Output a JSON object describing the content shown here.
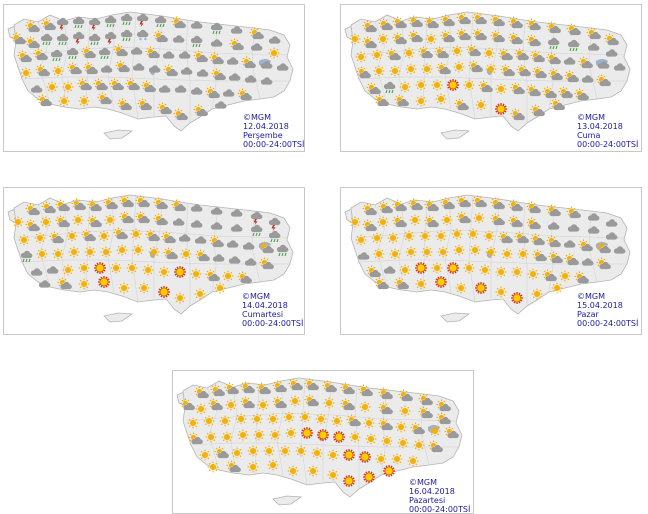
{
  "maps": [
    {
      "credit": "©MGM",
      "date": "12.04.2018",
      "day": "Perşembe",
      "hours": "00:00-24:00TSİ",
      "conditions": [
        "partly-cloudy",
        "sunny",
        "rain-showers",
        "thunderstorm",
        "cloudy",
        "snow"
      ]
    },
    {
      "credit": "©MGM",
      "date": "13.04.2018",
      "day": "Cuma",
      "hours": "00:00-24:00TSİ",
      "conditions": [
        "partly-cloudy",
        "sunny",
        "rain-showers",
        "cloudy",
        "hot"
      ]
    },
    {
      "credit": "©MGM",
      "date": "14.04.2018",
      "day": "Cumartesi",
      "hours": "00:00-24:00TSİ",
      "conditions": [
        "partly-cloudy",
        "sunny",
        "rain-showers",
        "thunderstorm",
        "cloudy",
        "hot"
      ]
    },
    {
      "credit": "©MGM",
      "date": "15.04.2018",
      "day": "Pazar",
      "hours": "00:00-24:00TSİ",
      "conditions": [
        "partly-cloudy",
        "sunny",
        "cloudy",
        "hot"
      ]
    },
    {
      "credit": "©MGM",
      "date": "16.04.2018",
      "day": "Pazartesi",
      "hours": "00:00-24:00TSİ",
      "conditions": [
        "partly-cloudy",
        "sunny",
        "hot"
      ]
    }
  ],
  "colors": {
    "land": "#ebebeb",
    "border": "#b4b4b4",
    "sea": "#ffffff",
    "lake": "#9db3cc",
    "sun": "#f5b000",
    "cloud": "#9a9a9a",
    "rain": "#3fa63f",
    "storm": "#cc2222",
    "caption": "#1a1aa0"
  }
}
